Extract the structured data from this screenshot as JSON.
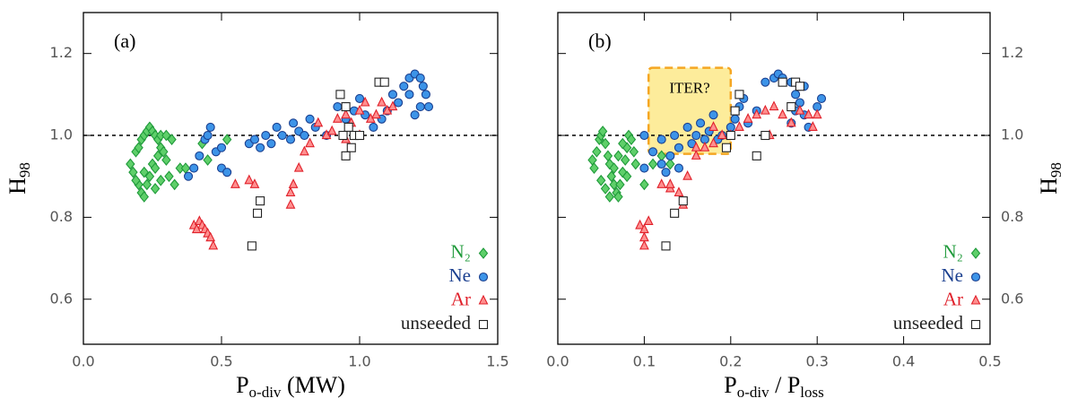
{
  "chart_data": [
    {
      "type": "scatter",
      "annotation": "(a)",
      "xlabel": [
        "P",
        "o-div",
        " (MW)"
      ],
      "ylabel": [
        "H",
        "98"
      ],
      "yaxis_side": "left",
      "xlim": [
        0,
        1.5
      ],
      "xticks": [
        {
          "value": 0,
          "label": "0.0"
        },
        {
          "value": 0.5,
          "label": "0.5"
        },
        {
          "value": 1,
          "label": "1.0"
        },
        {
          "value": 1.5,
          "label": "1.5"
        }
      ],
      "ylim": [
        0.49,
        1.3
      ],
      "yticks": [
        0.6,
        0.8,
        {
          "value": 1,
          "label": "1.0"
        },
        1.2
      ],
      "hline": 1.0,
      "legend": "lower right",
      "series": [
        {
          "name": "N₂",
          "color": "#5fcf6a",
          "edge": "#1f9a3a",
          "marker": "diamond",
          "x": [
            0.17,
            0.18,
            0.19,
            0.2,
            0.21,
            0.22,
            0.23,
            0.24,
            0.25,
            0.26,
            0.27,
            0.28,
            0.3,
            0.32,
            0.2,
            0.21,
            0.22,
            0.23,
            0.24,
            0.25,
            0.26,
            0.27,
            0.28,
            0.29,
            0.3,
            0.31,
            0.22,
            0.19,
            0.26,
            0.28,
            0.33,
            0.35,
            0.37,
            0.45,
            0.52,
            0.43
          ],
          "y": [
            0.93,
            0.91,
            0.96,
            0.97,
            0.99,
            1.0,
            1.01,
            1.02,
            1.01,
            1.0,
            0.99,
            1.0,
            1.0,
            0.99,
            0.88,
            0.86,
            0.85,
            0.88,
            0.9,
            0.93,
            0.92,
            0.95,
            0.97,
            0.96,
            0.94,
            0.9,
            0.91,
            0.89,
            0.87,
            0.89,
            0.88,
            0.92,
            0.92,
            0.94,
            0.99,
            0.98
          ]
        },
        {
          "name": "Ne",
          "color": "#3d94e8",
          "edge": "#1a3f8f",
          "marker": "circle",
          "x": [
            0.38,
            0.4,
            0.42,
            0.44,
            0.45,
            0.46,
            0.48,
            0.5,
            0.52,
            0.5,
            0.6,
            0.62,
            0.64,
            0.66,
            0.68,
            0.7,
            0.72,
            0.75,
            0.76,
            0.78,
            0.8,
            0.82,
            0.84,
            0.88,
            0.92,
            0.95,
            0.98,
            1.0,
            1.02,
            1.05,
            1.08,
            1.1,
            1.12,
            1.14,
            1.16,
            1.18,
            1.2,
            1.22,
            1.24,
            1.2,
            1.22,
            1.25,
            1.18,
            1.23
          ],
          "y": [
            0.9,
            0.92,
            0.95,
            0.99,
            1.0,
            1.02,
            0.96,
            0.92,
            0.91,
            0.97,
            0.98,
            0.99,
            0.97,
            1.0,
            0.98,
            1.02,
            1.0,
            0.99,
            1.03,
            1.01,
            1.0,
            1.04,
            1.02,
            1.0,
            1.07,
            1.04,
            1.06,
            1.09,
            1.05,
            1.02,
            1.04,
            1.06,
            1.1,
            1.08,
            1.12,
            1.14,
            1.15,
            1.14,
            1.1,
            1.05,
            1.07,
            1.07,
            1.1,
            1.12
          ]
        },
        {
          "name": "Ar",
          "color": "#ff8f8f",
          "edge": "#e0202a",
          "marker": "triangle",
          "x": [
            0.4,
            0.42,
            0.43,
            0.44,
            0.45,
            0.46,
            0.47,
            0.41,
            0.55,
            0.6,
            0.62,
            0.75,
            0.75,
            0.76,
            0.8,
            0.82,
            0.85,
            0.88,
            0.9,
            0.92,
            0.95,
            0.97,
            1.0,
            1.02,
            1.04,
            1.06,
            1.1,
            1.12,
            1.0,
            0.78,
            0.95,
            1.08
          ],
          "y": [
            0.78,
            0.79,
            0.78,
            0.77,
            0.76,
            0.75,
            0.73,
            0.77,
            0.88,
            0.89,
            0.88,
            0.83,
            0.86,
            0.88,
            0.96,
            0.98,
            1.03,
            1.0,
            1.01,
            1.04,
            1.05,
            1.03,
            1.06,
            1.08,
            1.04,
            1.05,
            1.06,
            1.07,
            1.0,
            0.92,
            0.99,
            1.08
          ]
        },
        {
          "name": "unseeded",
          "color": "#ffffff",
          "edge": "#222222",
          "marker": "square",
          "x": [
            0.61,
            0.63,
            0.64,
            0.93,
            0.95,
            0.96,
            0.97,
            0.95,
            0.98,
            1.0,
            1.07,
            1.09,
            0.94
          ],
          "y": [
            0.73,
            0.81,
            0.84,
            1.1,
            1.07,
            1.02,
            0.97,
            0.95,
            1.0,
            1.0,
            1.13,
            1.13,
            1.0
          ]
        }
      ]
    },
    {
      "type": "scatter",
      "annotation": "(b)",
      "xlabel": [
        "P",
        "o-div",
        " / P",
        "loss"
      ],
      "ylabel": [
        "H",
        "98"
      ],
      "yaxis_side": "right",
      "xlim": [
        0,
        0.5
      ],
      "xticks": [
        {
          "value": 0,
          "label": "0.0"
        },
        0.1,
        0.2,
        0.3,
        0.4,
        0.5
      ],
      "ylim": [
        0.49,
        1.3
      ],
      "yticks": [
        0.6,
        0.8,
        {
          "value": 1,
          "label": "1.0"
        },
        1.2
      ],
      "hline": 1.0,
      "legend": "lower right",
      "region": {
        "label": "ITER?",
        "x": [
          0.105,
          0.2
        ],
        "y": [
          0.955,
          1.165
        ]
      },
      "series": [
        {
          "name": "N₂",
          "color": "#5fcf6a",
          "edge": "#1f9a3a",
          "marker": "diamond",
          "x": [
            0.04,
            0.042,
            0.045,
            0.048,
            0.05,
            0.052,
            0.055,
            0.058,
            0.06,
            0.062,
            0.065,
            0.068,
            0.07,
            0.072,
            0.075,
            0.078,
            0.08,
            0.082,
            0.085,
            0.088,
            0.09,
            0.05,
            0.055,
            0.06,
            0.065,
            0.07,
            0.075,
            0.08,
            0.1,
            0.11,
            0.12,
            0.13
          ],
          "y": [
            0.94,
            0.92,
            0.96,
            0.99,
            1.0,
            1.01,
            0.98,
            0.95,
            0.93,
            0.9,
            0.88,
            0.86,
            0.85,
            0.88,
            0.91,
            0.94,
            0.97,
            1.0,
            0.99,
            0.96,
            0.93,
            0.89,
            0.87,
            0.85,
            0.92,
            0.95,
            0.98,
            0.9,
            0.88,
            0.93,
            0.95,
            0.93
          ]
        },
        {
          "name": "Ne",
          "color": "#3d94e8",
          "edge": "#1a3f8f",
          "marker": "circle",
          "x": [
            0.1,
            0.1,
            0.11,
            0.12,
            0.125,
            0.13,
            0.135,
            0.14,
            0.15,
            0.155,
            0.16,
            0.165,
            0.17,
            0.175,
            0.18,
            0.185,
            0.19,
            0.2,
            0.205,
            0.21,
            0.215,
            0.22,
            0.23,
            0.24,
            0.25,
            0.255,
            0.26,
            0.27,
            0.275,
            0.28,
            0.285,
            0.29,
            0.3,
            0.305,
            0.275,
            0.28,
            0.14,
            0.12,
            0.27,
            0.285
          ],
          "y": [
            0.92,
            1.0,
            0.96,
            0.99,
            0.91,
            0.95,
            1.0,
            0.97,
            1.02,
            0.98,
            1.0,
            1.03,
            0.99,
            1.01,
            1.05,
            0.99,
            1.0,
            1.02,
            1.04,
            1.07,
            1.09,
            1.03,
            1.06,
            1.13,
            1.14,
            1.15,
            1.14,
            1.13,
            1.1,
            1.08,
            1.05,
            1.02,
            1.07,
            1.09,
            1.06,
            1.12,
            0.92,
            0.93,
            1.03,
            1.12
          ]
        },
        {
          "name": "Ar",
          "color": "#ff8f8f",
          "edge": "#e0202a",
          "marker": "triangle",
          "x": [
            0.095,
            0.1,
            0.1,
            0.105,
            0.1,
            0.12,
            0.13,
            0.14,
            0.145,
            0.15,
            0.16,
            0.17,
            0.18,
            0.19,
            0.2,
            0.21,
            0.22,
            0.23,
            0.24,
            0.25,
            0.26,
            0.27,
            0.28,
            0.29,
            0.295,
            0.3,
            0.245,
            0.18,
            0.16,
            0.13
          ],
          "y": [
            0.78,
            0.77,
            0.75,
            0.79,
            0.73,
            0.88,
            0.87,
            0.86,
            0.83,
            0.9,
            0.95,
            0.97,
            0.98,
            1.0,
            1.0,
            1.02,
            1.04,
            1.05,
            1.06,
            1.07,
            1.05,
            1.03,
            1.06,
            1.05,
            1.02,
            1.05,
            1.0,
            1.02,
            0.97,
            0.88
          ]
        },
        {
          "name": "unseeded",
          "color": "#ffffff",
          "edge": "#222222",
          "marker": "square",
          "x": [
            0.125,
            0.135,
            0.145,
            0.195,
            0.2,
            0.205,
            0.21,
            0.23,
            0.24,
            0.26,
            0.275,
            0.28,
            0.27
          ],
          "y": [
            0.73,
            0.81,
            0.84,
            0.97,
            1.0,
            1.06,
            1.1,
            0.95,
            1.0,
            1.13,
            1.13,
            1.12,
            1.07
          ]
        }
      ]
    }
  ]
}
